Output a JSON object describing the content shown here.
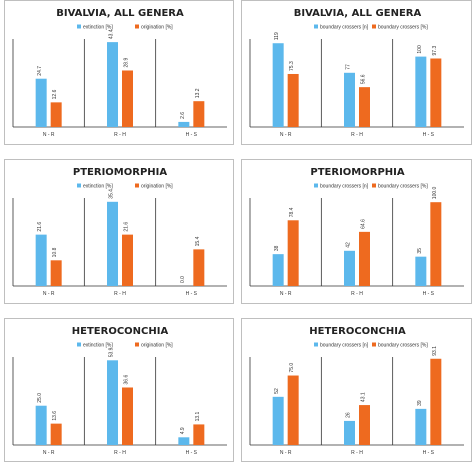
{
  "colors": {
    "blue": "#5cb8ec",
    "orange": "#ee6a1f"
  },
  "charts": [
    {
      "title": "BIVALVIA, ALL GENERA",
      "legend": [
        "extinction [%]",
        "origination [%]"
      ],
      "ticks": [
        "N - R",
        "R - H",
        "H - S"
      ],
      "chart_data": {
        "type": "bar",
        "categories": [
          "N - R",
          "R - H",
          "H - S"
        ],
        "ylim": [
          0,
          45
        ],
        "series": [
          {
            "name": "extinction [%]",
            "values": [
              24.7,
              43.4,
              2.6
            ]
          },
          {
            "name": "origination [%]",
            "values": [
              12.6,
              28.9,
              13.2
            ]
          }
        ]
      },
      "labels": [
        [
          "24.7",
          "12.6"
        ],
        [
          "43.4",
          "28.9"
        ],
        [
          "2.6",
          "13.2"
        ]
      ]
    },
    {
      "title": "BIVALVIA, ALL GENERA",
      "legend": [
        "boundary crossers [n]",
        "boundary crossers [%]"
      ],
      "ticks": [
        "N - R",
        "R - H",
        "H - S"
      ],
      "chart_data": {
        "type": "bar",
        "categories": [
          "N - R",
          "R - H",
          "H - S"
        ],
        "ylim": [
          0,
          125
        ],
        "series": [
          {
            "name": "boundary crossers [n]",
            "values": [
              119,
              77,
              100
            ]
          },
          {
            "name": "boundary crossers [%]",
            "values": [
              75.3,
              56.6,
              97.3
            ]
          }
        ]
      },
      "labels": [
        [
          "119",
          "75.3"
        ],
        [
          "77",
          "56.6"
        ],
        [
          "100",
          "97.3"
        ]
      ]
    },
    {
      "title": "PTERIOMORPHIA",
      "legend": [
        "extinction [%]",
        "origination [%]"
      ],
      "ticks": [
        "N - R",
        "R - H",
        "H - S"
      ],
      "chart_data": {
        "type": "bar",
        "categories": [
          "N - R",
          "R - H",
          "H - S"
        ],
        "ylim": [
          0,
          37
        ],
        "series": [
          {
            "name": "extinction [%]",
            "values": [
              21.6,
              35.4,
              0.0
            ]
          },
          {
            "name": "origination [%]",
            "values": [
              10.8,
              21.6,
              15.4
            ]
          }
        ]
      },
      "labels": [
        [
          "21.6",
          "10.8"
        ],
        [
          "35.4",
          "21.6"
        ],
        [
          "0.0",
          "15.4"
        ]
      ]
    },
    {
      "title": "PTERIOMORPHIA",
      "legend": [
        "boundary crossers [n]",
        "boundary crossers [%]"
      ],
      "ticks": [
        "N - R",
        "R - H",
        "H - S"
      ],
      "chart_data": {
        "type": "bar",
        "categories": [
          "N - R",
          "R - H",
          "H - S"
        ],
        "ylim": [
          0,
          105
        ],
        "series": [
          {
            "name": "boundary crossers [n]",
            "values": [
              38,
              42,
              35
            ]
          },
          {
            "name": "boundary crossers [%]",
            "values": [
              78.4,
              64.6,
              100.0
            ]
          }
        ]
      },
      "labels": [
        [
          "38",
          "78.4"
        ],
        [
          "42",
          "64.6"
        ],
        [
          "35",
          "100.0"
        ]
      ]
    },
    {
      "title": "HETEROCONCHIA",
      "legend": [
        "extinction [%]",
        "origination [%]"
      ],
      "ticks": [
        "N - R",
        "R - H",
        "H - S"
      ],
      "chart_data": {
        "type": "bar",
        "categories": [
          "N - R",
          "R - H",
          "H - S"
        ],
        "ylim": [
          0,
          56
        ],
        "series": [
          {
            "name": "extinction [%]",
            "values": [
              25.0,
              53.9,
              4.9
            ]
          },
          {
            "name": "origination [%]",
            "values": [
              13.6,
              36.6,
              13.1
            ]
          }
        ]
      },
      "labels": [
        [
          "25.0",
          "13.6"
        ],
        [
          "53.9",
          "36.6"
        ],
        [
          "4.9",
          "13.1"
        ]
      ]
    },
    {
      "title": "HETEROCONCHIA",
      "legend": [
        "boundary crossers [n]",
        "boundary crossers [%]"
      ],
      "ticks": [
        "N - R",
        "R - H",
        "H - S"
      ],
      "chart_data": {
        "type": "bar",
        "categories": [
          "N - R",
          "R - H",
          "H - S"
        ],
        "ylim": [
          0,
          95
        ],
        "series": [
          {
            "name": "boundary crossers [n]",
            "values": [
              52,
              26,
              39
            ]
          },
          {
            "name": "boundary crossers [%]",
            "values": [
              75.0,
              43.1,
              93.1
            ]
          }
        ]
      },
      "labels": [
        [
          "52",
          "75.0"
        ],
        [
          "26",
          "43.1"
        ],
        [
          "39",
          "93.1"
        ]
      ]
    }
  ]
}
